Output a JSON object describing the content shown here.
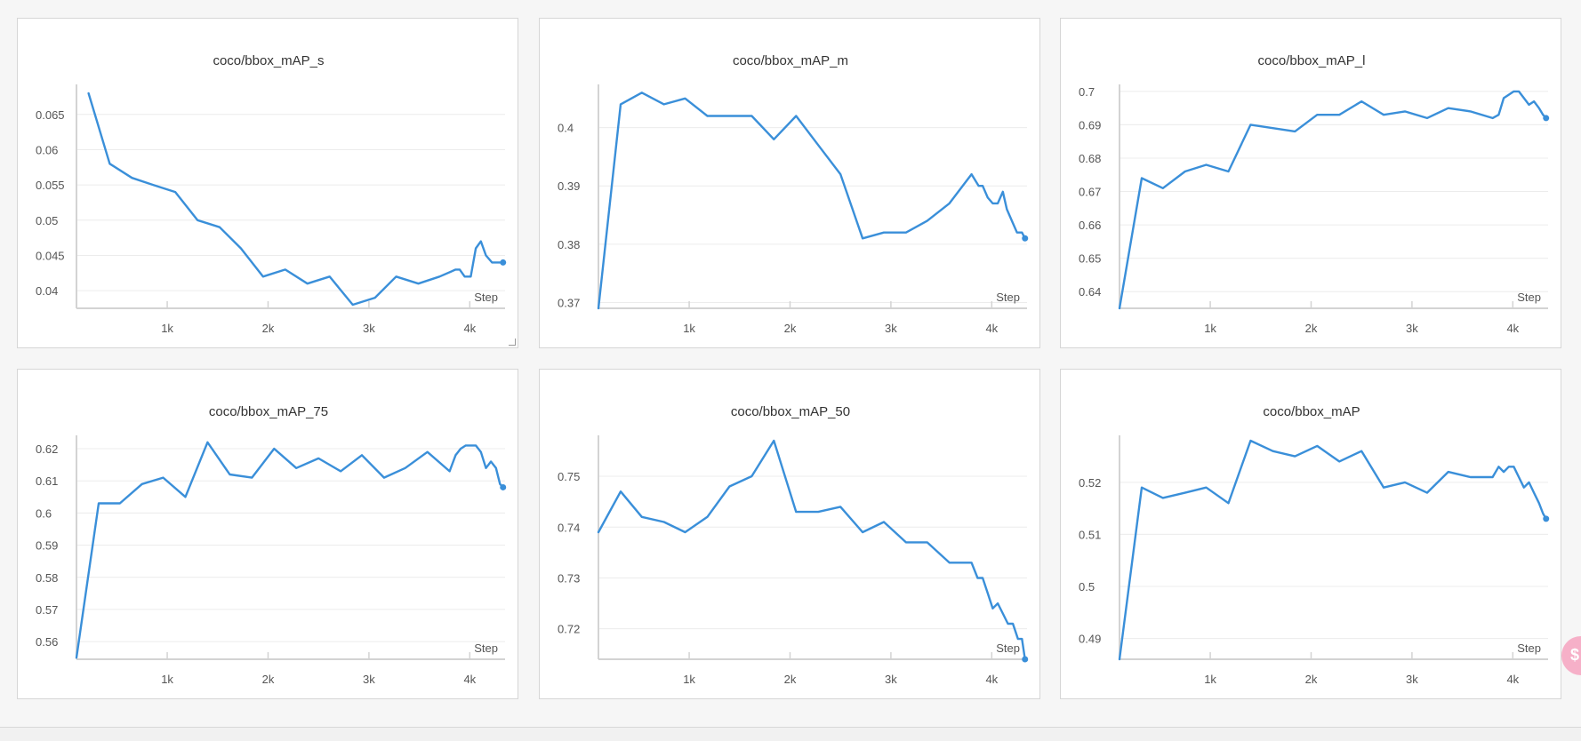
{
  "step_label": "Step",
  "series_color": "#3a8fd9",
  "float_badge_symbol": "$",
  "chart_data": [
    {
      "type": "line",
      "title": "coco/bbox_mAP_s",
      "xlabel": "Step",
      "ylabel": "",
      "xlim": [
        100,
        4350
      ],
      "ylim": [
        0.0375,
        0.0685
      ],
      "xticks": [
        1000,
        2000,
        3000,
        4000
      ],
      "xtick_labels": [
        "1k",
        "2k",
        "3k",
        "4k"
      ],
      "yticks": [
        0.04,
        0.045,
        0.05,
        0.055,
        0.06,
        0.065
      ],
      "ytick_labels": [
        "0.04",
        "0.045",
        "0.05",
        "0.055",
        "0.06",
        "0.065"
      ],
      "x": [
        220,
        430,
        650,
        860,
        1080,
        1300,
        1520,
        1730,
        1950,
        2170,
        2390,
        2610,
        2840,
        3060,
        3270,
        3490,
        3700,
        3860,
        3900,
        3950,
        4010,
        4060,
        4110,
        4160,
        4220,
        4280,
        4330
      ],
      "y": [
        0.068,
        0.058,
        0.056,
        0.055,
        0.054,
        0.05,
        0.049,
        0.046,
        0.042,
        0.043,
        0.041,
        0.042,
        0.038,
        0.039,
        0.042,
        0.041,
        0.042,
        0.043,
        0.043,
        0.042,
        0.042,
        0.046,
        0.047,
        0.045,
        0.044,
        0.044,
        0.044
      ]
    },
    {
      "type": "line",
      "title": "coco/bbox_mAP_m",
      "xlabel": "Step",
      "ylabel": "",
      "xlim": [
        100,
        4350
      ],
      "ylim": [
        0.369,
        0.4065
      ],
      "xticks": [
        1000,
        2000,
        3000,
        4000
      ],
      "xtick_labels": [
        "1k",
        "2k",
        "3k",
        "4k"
      ],
      "yticks": [
        0.37,
        0.38,
        0.39,
        0.4
      ],
      "ytick_labels": [
        "0.37",
        "0.38",
        "0.39",
        "0.4"
      ],
      "x": [
        100,
        320,
        530,
        750,
        960,
        1180,
        1400,
        1620,
        1840,
        2060,
        2280,
        2500,
        2720,
        2930,
        3150,
        3360,
        3580,
        3800,
        3870,
        3910,
        3960,
        4010,
        4060,
        4110,
        4150,
        4200,
        4250,
        4300,
        4330
      ],
      "y": [
        0.369,
        0.404,
        0.406,
        0.404,
        0.405,
        0.402,
        0.402,
        0.402,
        0.398,
        0.402,
        0.397,
        0.392,
        0.381,
        0.382,
        0.382,
        0.384,
        0.387,
        0.392,
        0.39,
        0.39,
        0.388,
        0.387,
        0.387,
        0.389,
        0.386,
        0.384,
        0.382,
        0.382,
        0.381
      ]
    },
    {
      "type": "line",
      "title": "coco/bbox_mAP_l",
      "xlabel": "Step",
      "ylabel": "",
      "xlim": [
        100,
        4350
      ],
      "ylim": [
        0.635,
        0.7005
      ],
      "xticks": [
        1000,
        2000,
        3000,
        4000
      ],
      "xtick_labels": [
        "1k",
        "2k",
        "3k",
        "4k"
      ],
      "yticks": [
        0.64,
        0.65,
        0.66,
        0.67,
        0.68,
        0.69,
        0.7
      ],
      "ytick_labels": [
        "0.64",
        "0.65",
        "0.66",
        "0.67",
        "0.68",
        "0.69",
        "0.7"
      ],
      "x": [
        100,
        320,
        530,
        750,
        960,
        1180,
        1400,
        1620,
        1840,
        2060,
        2280,
        2500,
        2720,
        2930,
        3150,
        3360,
        3580,
        3800,
        3860,
        3910,
        3960,
        4010,
        4060,
        4110,
        4160,
        4210,
        4260,
        4300,
        4330
      ],
      "y": [
        0.635,
        0.674,
        0.671,
        0.676,
        0.678,
        0.676,
        0.69,
        0.689,
        0.688,
        0.693,
        0.693,
        0.697,
        0.693,
        0.694,
        0.692,
        0.695,
        0.694,
        0.692,
        0.693,
        0.698,
        0.699,
        0.7,
        0.7,
        0.698,
        0.696,
        0.697,
        0.695,
        0.693,
        0.692
      ]
    },
    {
      "type": "line",
      "title": "coco/bbox_mAP_75",
      "xlabel": "Step",
      "ylabel": "",
      "xlim": [
        100,
        4350
      ],
      "ylim": [
        0.5545,
        0.6225
      ],
      "xticks": [
        1000,
        2000,
        3000,
        4000
      ],
      "xtick_labels": [
        "1k",
        "2k",
        "3k",
        "4k"
      ],
      "yticks": [
        0.56,
        0.57,
        0.58,
        0.59,
        0.6,
        0.61,
        0.62
      ],
      "ytick_labels": [
        "0.56",
        "0.57",
        "0.58",
        "0.59",
        "0.6",
        "0.61",
        "0.62"
      ],
      "x": [
        100,
        320,
        530,
        750,
        960,
        1180,
        1400,
        1620,
        1840,
        2060,
        2280,
        2500,
        2720,
        2930,
        3150,
        3360,
        3580,
        3800,
        3860,
        3910,
        3960,
        4010,
        4060,
        4110,
        4160,
        4210,
        4260,
        4300,
        4330
      ],
      "y": [
        0.555,
        0.603,
        0.603,
        0.609,
        0.611,
        0.605,
        0.622,
        0.612,
        0.611,
        0.62,
        0.614,
        0.617,
        0.613,
        0.618,
        0.611,
        0.614,
        0.619,
        0.613,
        0.618,
        0.62,
        0.621,
        0.621,
        0.621,
        0.619,
        0.614,
        0.616,
        0.614,
        0.609,
        0.608
      ]
    },
    {
      "type": "line",
      "title": "coco/bbox_mAP_50",
      "xlabel": "Step",
      "ylabel": "",
      "xlim": [
        100,
        4350
      ],
      "ylim": [
        0.714,
        0.757
      ],
      "xticks": [
        1000,
        2000,
        3000,
        4000
      ],
      "xtick_labels": [
        "1k",
        "2k",
        "3k",
        "4k"
      ],
      "yticks": [
        0.72,
        0.73,
        0.74,
        0.75
      ],
      "ytick_labels": [
        "0.72",
        "0.73",
        "0.74",
        "0.75"
      ],
      "x": [
        100,
        320,
        530,
        750,
        960,
        1180,
        1400,
        1620,
        1840,
        2060,
        2280,
        2500,
        2720,
        2930,
        3150,
        3360,
        3580,
        3800,
        3860,
        3910,
        3960,
        4010,
        4060,
        4110,
        4160,
        4210,
        4260,
        4300,
        4330
      ],
      "y": [
        0.739,
        0.747,
        0.742,
        0.741,
        0.739,
        0.742,
        0.748,
        0.75,
        0.757,
        0.743,
        0.743,
        0.744,
        0.739,
        0.741,
        0.737,
        0.737,
        0.733,
        0.733,
        0.73,
        0.73,
        0.727,
        0.724,
        0.725,
        0.723,
        0.721,
        0.721,
        0.718,
        0.718,
        0.714
      ]
    },
    {
      "type": "line",
      "title": "coco/bbox_mAP",
      "xlabel": "Step",
      "ylabel": "",
      "xlim": [
        100,
        4350
      ],
      "ylim": [
        0.486,
        0.528
      ],
      "xticks": [
        1000,
        2000,
        3000,
        4000
      ],
      "xtick_labels": [
        "1k",
        "2k",
        "3k",
        "4k"
      ],
      "yticks": [
        0.49,
        0.5,
        0.51,
        0.52
      ],
      "ytick_labels": [
        "0.49",
        "0.5",
        "0.51",
        "0.52"
      ],
      "x": [
        100,
        320,
        530,
        750,
        960,
        1180,
        1400,
        1620,
        1840,
        2060,
        2280,
        2500,
        2720,
        2930,
        3150,
        3360,
        3580,
        3800,
        3860,
        3910,
        3960,
        4010,
        4060,
        4110,
        4160,
        4210,
        4260,
        4300,
        4330
      ],
      "y": [
        0.486,
        0.519,
        0.517,
        0.518,
        0.519,
        0.516,
        0.528,
        0.526,
        0.525,
        0.527,
        0.524,
        0.526,
        0.519,
        0.52,
        0.518,
        0.522,
        0.521,
        0.521,
        0.523,
        0.522,
        0.523,
        0.523,
        0.521,
        0.519,
        0.52,
        0.518,
        0.516,
        0.514,
        0.513
      ]
    }
  ]
}
